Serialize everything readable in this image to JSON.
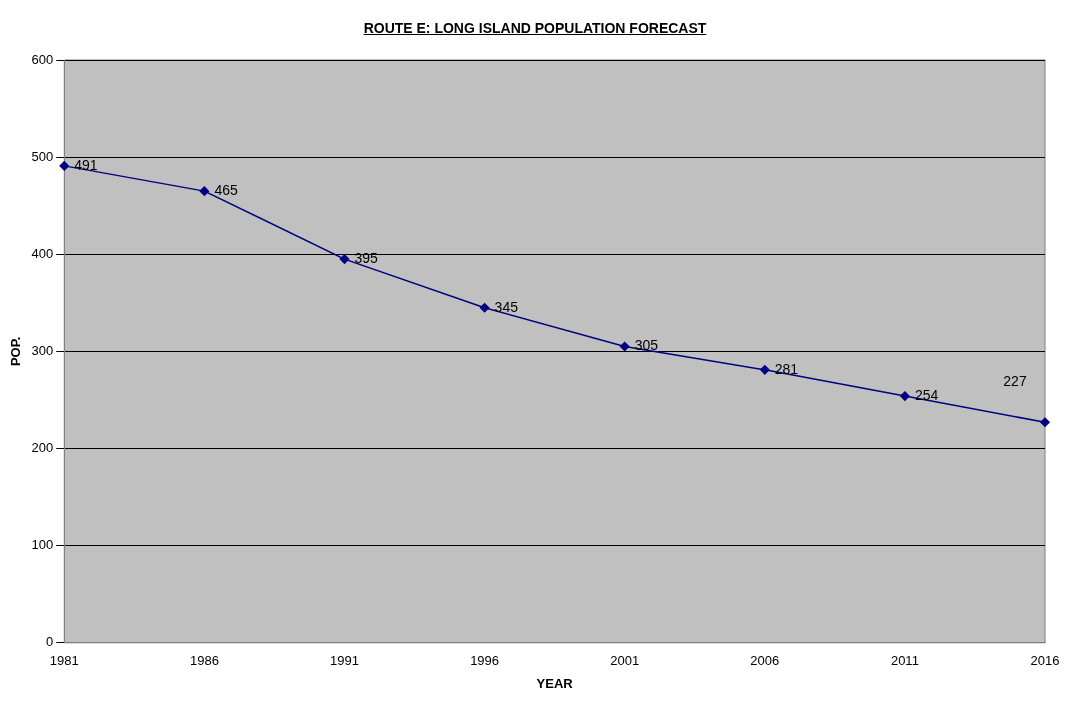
{
  "chart_data": {
    "type": "line",
    "title": "ROUTE E: LONG ISLAND POPULATION FORECAST",
    "xlabel": "YEAR",
    "ylabel": "POP.",
    "categories": [
      "1981",
      "1986",
      "1991",
      "1996",
      "2001",
      "2006",
      "2011",
      "2016"
    ],
    "series": [
      {
        "color": "#000080",
        "values": [
          491,
          465,
          395,
          345,
          305,
          281,
          254,
          227
        ]
      }
    ],
    "ylim": [
      0,
      600
    ],
    "yticks": [
      0,
      100,
      200,
      300,
      400,
      500,
      600
    ],
    "grid": "y",
    "legend": false,
    "marker": "diamond",
    "line_style": "solid",
    "data_labels": true
  }
}
